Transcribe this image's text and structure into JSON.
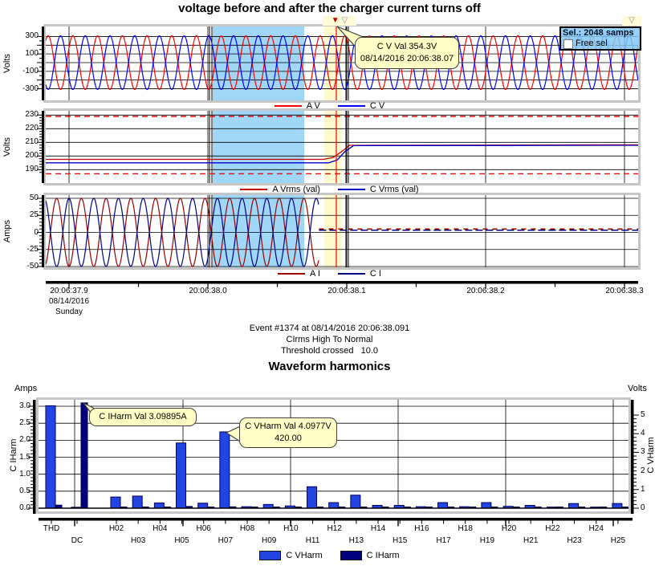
{
  "page": {
    "title": "voltage before and after the charger current turns off"
  },
  "colors": {
    "a_v": "#ff0000",
    "c_v": "#0000ff",
    "a_vrms": "#cc0000",
    "c_vrms": "#0000cc",
    "a_i": "#990000",
    "c_i": "#000080",
    "vharm_bar": "#2244e0",
    "iharm_bar": "#000080",
    "selection_highlight": "#a0d6f6",
    "cursor_band": "#fff9d0",
    "cursor_line": "#ff0000",
    "limit_dashed": "#ff0000",
    "tooltip_bg": "#ffffc6",
    "sel_box_bg": "#82c8f5"
  },
  "waveform_section": {
    "sel_box": {
      "line1": "Sel.: 2048 samps",
      "line2": "Free sel"
    },
    "cursor_tooltip": {
      "line1": "C V Val 354.3V",
      "line2": "08/14/2016 20:06:38.07"
    },
    "charts": [
      {
        "id": "volts_wave",
        "unit": "Volts",
        "yticks": [
          "300",
          "100",
          "-100",
          "-300"
        ],
        "legend": [
          {
            "label": "A V",
            "color": "#ff0000"
          },
          {
            "label": "C V",
            "color": "#0000ff"
          }
        ]
      },
      {
        "id": "vrms",
        "unit": "Volts",
        "yticks": [
          "230",
          "220",
          "210",
          "200",
          "190"
        ],
        "legend": [
          {
            "label": "A Vrms (val)",
            "color": "#cc0000"
          },
          {
            "label": "C Vrms (val)",
            "color": "#0000cc"
          }
        ]
      },
      {
        "id": "amps_wave",
        "unit": "Amps",
        "yticks": [
          "50",
          "25",
          "0",
          "-25",
          "-50"
        ],
        "legend": [
          {
            "label": "A I",
            "color": "#990000"
          },
          {
            "label": "C I",
            "color": "#000080"
          }
        ]
      }
    ],
    "time_axis": {
      "labels": [
        "20:06:37.9",
        "20:06:38.0",
        "20:06:38.1",
        "20:06:38.2",
        "20:06:38.3"
      ],
      "date": "08/14/2016",
      "day": "Sunday"
    }
  },
  "event_text": {
    "line1": "Event #1374 at 08/14/2016 20:06:38.091",
    "line2": "CIrms High To Normal",
    "line3": "Threshold crossed   10.0"
  },
  "harmonics_section": {
    "title": "Waveform harmonics",
    "left_axis": {
      "unit": "Amps",
      "label": "C IHarm",
      "ticks": [
        "3.0",
        "2.5",
        "2.0",
        "1.5",
        "1.0",
        "0.5",
        "0.0"
      ]
    },
    "right_axis": {
      "unit": "Volts",
      "label": "C VHarm",
      "ticks": [
        "0",
        "1",
        "2",
        "3",
        "4",
        "5"
      ]
    },
    "tooltip_iharm": {
      "line1": "C IHarm Val 3.09895A"
    },
    "tooltip_vharm": {
      "line1": "C VHarm Val 4.0977V",
      "line2": "420.00"
    },
    "legend": [
      {
        "label": "C VHarm",
        "color": "#2244e0"
      },
      {
        "label": "C IHarm",
        "color": "#000080"
      }
    ]
  },
  "chart_data": [
    {
      "type": "line",
      "id": "volts_wave",
      "ylabel": "Volts",
      "ylim": [
        -420,
        420
      ],
      "yticks": [
        300,
        100,
        -100,
        -300
      ],
      "x_window": [
        "20:06:37.88",
        "20:06:38.31"
      ],
      "description": "A-phase and C-phase voltage waveforms, ~60 Hz sine, antiphase, continuing through the event",
      "series": [
        {
          "name": "A V",
          "waveform": "sine",
          "amplitude_v": 310,
          "frequency_hz": 60
        },
        {
          "name": "C V",
          "waveform": "sine",
          "amplitude_v": 310,
          "frequency_hz": 60,
          "phase_offset_deg": 180
        }
      ],
      "cursor": {
        "value": "C V Val 354.3V",
        "time": "08/14/2016 20:06:38.07"
      },
      "selection": {
        "samples": 2048,
        "highlight_span": [
          "20:06:38.00",
          "20:06:38.07"
        ]
      }
    },
    {
      "type": "line",
      "id": "vrms",
      "ylabel": "Volts",
      "ylim": [
        185,
        233
      ],
      "yticks": [
        230,
        220,
        210,
        200,
        190
      ],
      "limits_dashed_v": [
        229,
        187
      ],
      "series": [
        {
          "name": "A Vrms (val)",
          "points_t_v": [
            [
              37.883,
              197.5
            ],
            [
              38.083,
              197.5
            ],
            [
              38.09,
              198.8
            ],
            [
              38.096,
              203.0
            ],
            [
              38.102,
              207.8
            ],
            [
              38.31,
              208.2
            ]
          ]
        },
        {
          "name": "C Vrms (val)",
          "points_t_v": [
            [
              37.883,
              195.0
            ],
            [
              38.087,
              195.0
            ],
            [
              38.093,
              197.0
            ],
            [
              38.099,
              203.5
            ],
            [
              38.105,
              207.6
            ],
            [
              38.31,
              207.8
            ]
          ]
        }
      ]
    },
    {
      "type": "line",
      "id": "amps_wave",
      "ylabel": "Amps",
      "ylim": [
        -52,
        52
      ],
      "yticks": [
        50,
        25,
        0,
        -25,
        -50
      ],
      "description": "Charger current ~50 A sine until it turns off at ~20:06:38.08, then near-zero DC level",
      "series": [
        {
          "name": "A I",
          "waveform": "sine",
          "amplitude_a": 50,
          "frequency_hz": 60,
          "cutoff_t": 38.08,
          "after_value_a": 5.0
        },
        {
          "name": "C I",
          "waveform": "sine",
          "amplitude_a": 50,
          "frequency_hz": 60,
          "phase_offset_deg": 180,
          "cutoff_t": 38.08,
          "after_value_a": 3.2
        }
      ]
    },
    {
      "type": "bar",
      "id": "harmonics",
      "title": "Waveform harmonics",
      "categories": [
        "THD",
        "DC",
        "H02",
        "H03",
        "H04",
        "H05",
        "H06",
        "H07",
        "H08",
        "H09",
        "H10",
        "H11",
        "H12",
        "H13",
        "H14",
        "H15",
        "H16",
        "H17",
        "H18",
        "H19",
        "H20",
        "H21",
        "H22",
        "H23",
        "H24",
        "H25"
      ],
      "left_ylabel": "C IHarm (Amps)",
      "right_ylabel": "C VHarm (Volts)",
      "left_ylim": [
        0,
        3.2
      ],
      "right_ylim": [
        0,
        5.8
      ],
      "series": [
        {
          "name": "C VHarm",
          "axis": "right",
          "unit": "V",
          "values": [
            5.5,
            0.05,
            0.6,
            0.65,
            0.28,
            3.5,
            0.27,
            4.0977,
            0.08,
            0.2,
            0.12,
            1.15,
            0.3,
            0.7,
            0.15,
            0.15,
            0.08,
            0.3,
            0.08,
            0.3,
            0.1,
            0.15,
            0.06,
            0.25,
            0.06,
            0.25
          ]
        },
        {
          "name": "C IHarm",
          "axis": "left",
          "unit": "A",
          "values": [
            0.09,
            3.09895,
            0.02,
            0.02,
            0.02,
            0.05,
            0.03,
            0.04,
            0.02,
            0.02,
            0.02,
            0.03,
            0.02,
            0.03,
            0.02,
            0.02,
            0.02,
            0.02,
            0.02,
            0.02,
            0.02,
            0.02,
            0.02,
            0.02,
            0.02,
            0.02
          ]
        }
      ],
      "annotations": [
        {
          "text": "C IHarm Val 3.09895A",
          "target": "DC"
        },
        {
          "text": "C VHarm Val 4.0977V 420.00",
          "target": "H07"
        }
      ]
    }
  ]
}
